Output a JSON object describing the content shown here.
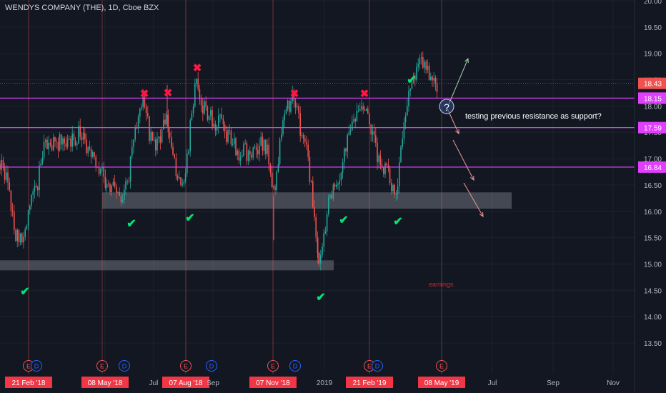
{
  "header": {
    "title": "WENDYS COMPANY (THE), 1D, Cboe BZX"
  },
  "chart_data": {
    "type": "candlestick",
    "title": "WENDYS COMPANY (THE), 1D, Cboe BZX",
    "ylim": [
      13.5,
      20.0
    ],
    "y_ticks": [
      "13.50",
      "14.00",
      "14.50",
      "15.00",
      "15.50",
      "16.00",
      "16.50",
      "17.00",
      "17.50",
      "18.00",
      "18.50",
      "19.00",
      "19.50",
      "20.00"
    ],
    "x_labels": [
      {
        "label": "21 Feb '18",
        "highlight": true
      },
      {
        "label": "08 May '18",
        "highlight": true
      },
      {
        "label": "Jul",
        "highlight": false
      },
      {
        "label": "07 Aug '18",
        "highlight": true
      },
      {
        "label": "Sep",
        "highlight": false
      },
      {
        "label": "07 Nov '18",
        "highlight": true
      },
      {
        "label": "2019",
        "highlight": false
      },
      {
        "label": "21 Feb '19",
        "highlight": true
      },
      {
        "label": "08 May '19",
        "highlight": true
      },
      {
        "label": "Jul",
        "highlight": false
      },
      {
        "label": "Sep",
        "highlight": false
      },
      {
        "label": "Nov",
        "highlight": false
      }
    ],
    "price_tag": {
      "label": "18.43",
      "color": "#ef5350"
    },
    "horizontal_levels": [
      {
        "label": "18.15",
        "color": "#e040fb"
      },
      {
        "label": "17.59",
        "color": "#e040fb"
      },
      {
        "label": "16.84",
        "color": "#e040fb"
      }
    ],
    "support_zones": [
      {
        "y_from": 16.05,
        "y_to": 16.36
      },
      {
        "y_from": 14.88,
        "y_to": 15.07
      }
    ],
    "annotation_text": "testing previous resistance as support?",
    "question_mark": "?",
    "earnings_label": "earnings",
    "event_markers": [
      {
        "letter": "E",
        "color": "#ef5350"
      },
      {
        "letter": "D",
        "color": "#2962ff"
      },
      {
        "letter": "E",
        "color": "#ef5350"
      },
      {
        "letter": "D",
        "color": "#2962ff"
      },
      {
        "letter": "E",
        "color": "#ef5350"
      },
      {
        "letter": "D",
        "color": "#2962ff"
      },
      {
        "letter": "E",
        "color": "#ef5350"
      },
      {
        "letter": "D",
        "color": "#2962ff"
      },
      {
        "letter": "E",
        "color": "#ef5350"
      },
      {
        "letter": "D",
        "color": "#2962ff"
      },
      {
        "letter": "E",
        "color": "#ef5350"
      }
    ],
    "cross_markers": [
      {
        "x": "Jun '18",
        "y": 18.3
      },
      {
        "x": "Jul '18",
        "y": 18.3
      },
      {
        "x": "Aug '18",
        "y": 18.85
      },
      {
        "x": "Nov '18",
        "y": 18.3
      },
      {
        "x": "Feb '19",
        "y": 18.3
      }
    ],
    "check_markers": [
      {
        "x": "Feb '18",
        "y": 14.85
      },
      {
        "x": "Jun '18",
        "y": 16.06
      },
      {
        "x": "Aug '18",
        "y": 16.14
      },
      {
        "x": "Dec '18",
        "y": 14.75
      },
      {
        "x": "Jan '19",
        "y": 16.1
      },
      {
        "x": "Mar '19",
        "y": 16.1
      },
      {
        "x": "Apr '19",
        "y": 18.68
      }
    ],
    "colors": {
      "up": "#26a69a",
      "down": "#ef5350",
      "background": "#131722",
      "level": "#e040fb"
    },
    "grid": true
  }
}
